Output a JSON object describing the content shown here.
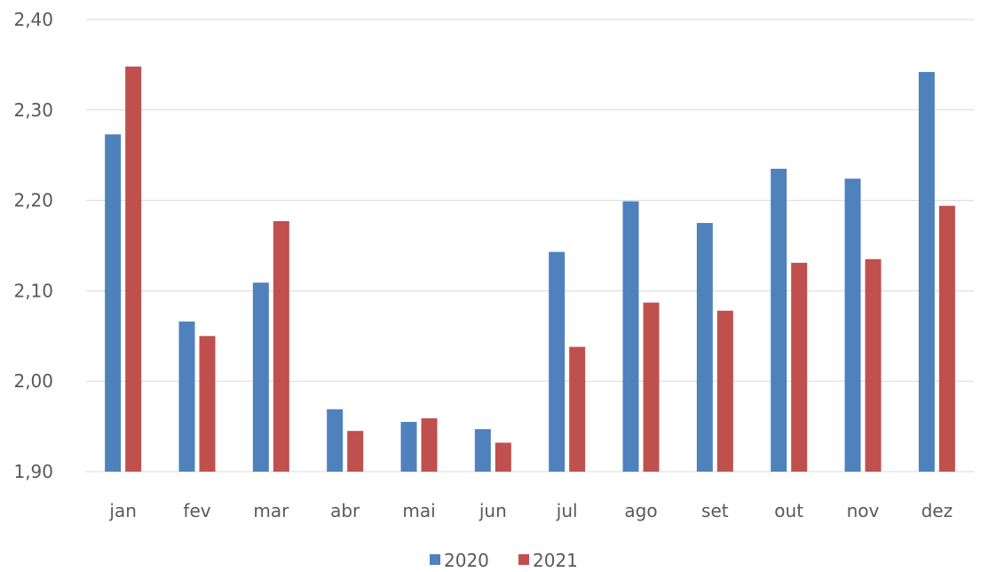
{
  "chart_data": {
    "type": "bar",
    "categories": [
      "jan",
      "fev",
      "mar",
      "abr",
      "mai",
      "jun",
      "jul",
      "ago",
      "set",
      "out",
      "nov",
      "dez"
    ],
    "series": [
      {
        "name": "2020",
        "color": "#4f81bd",
        "values": [
          2.273,
          2.066,
          2.109,
          1.969,
          1.955,
          1.947,
          2.143,
          2.199,
          2.175,
          2.235,
          2.224,
          2.342
        ]
      },
      {
        "name": "2021",
        "color": "#c0504d",
        "values": [
          2.348,
          2.05,
          2.177,
          1.945,
          1.959,
          1.932,
          2.038,
          2.087,
          2.078,
          2.131,
          2.135,
          2.194
        ]
      }
    ],
    "y_ticks": [
      "1,90",
      "2,00",
      "2,10",
      "2,20",
      "2,30",
      "2,40"
    ],
    "ylim": [
      1.9,
      2.4
    ],
    "grid": true,
    "legend_position": "bottom"
  }
}
